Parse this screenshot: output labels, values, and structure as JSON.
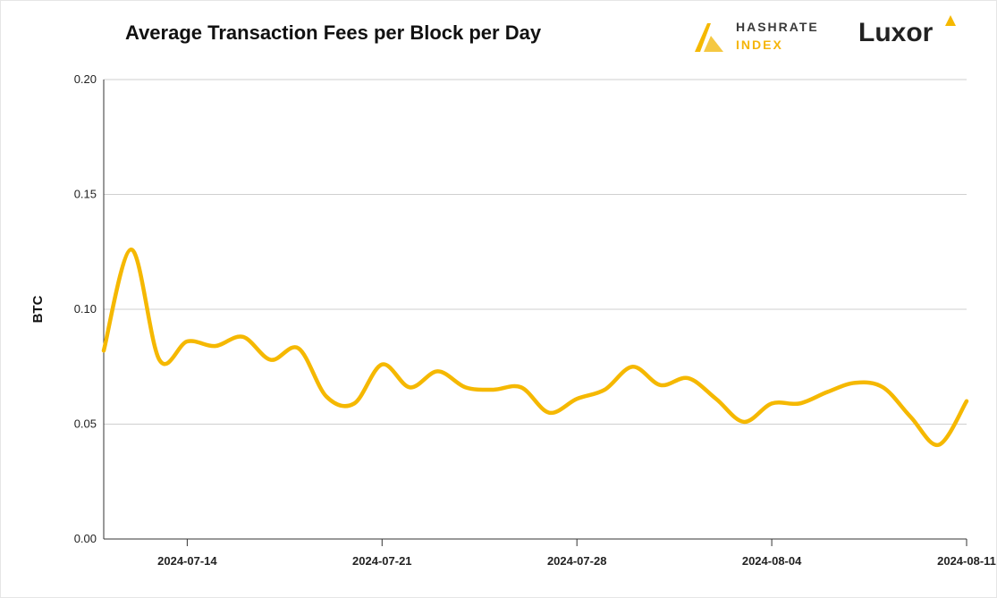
{
  "chart_data": {
    "type": "line",
    "title": "Average Transaction Fees per Block per Day",
    "xlabel": "",
    "ylabel": "BTC",
    "ylim": [
      0,
      0.2
    ],
    "yticks": [
      "0.00",
      "0.05",
      "0.10",
      "0.15",
      "0.20"
    ],
    "xlim": [
      "2024-07-11",
      "2024-08-11"
    ],
    "xticks": [
      "2024-07-14",
      "2024-07-21",
      "2024-07-28",
      "2024-08-04",
      "2024-08-11"
    ],
    "grid": true,
    "series": [
      {
        "color": "#f5b800",
        "x": [
          "2024-07-11",
          "2024-07-12",
          "2024-07-13",
          "2024-07-14",
          "2024-07-15",
          "2024-07-16",
          "2024-07-17",
          "2024-07-18",
          "2024-07-19",
          "2024-07-20",
          "2024-07-21",
          "2024-07-22",
          "2024-07-23",
          "2024-07-24",
          "2024-07-25",
          "2024-07-26",
          "2024-07-27",
          "2024-07-28",
          "2024-07-29",
          "2024-07-30",
          "2024-07-31",
          "2024-08-01",
          "2024-08-02",
          "2024-08-03",
          "2024-08-04",
          "2024-08-05",
          "2024-08-06",
          "2024-08-07",
          "2024-08-08",
          "2024-08-09",
          "2024-08-10",
          "2024-08-11"
        ],
        "values": [
          0.082,
          0.126,
          0.078,
          0.086,
          0.084,
          0.088,
          0.078,
          0.083,
          0.062,
          0.059,
          0.076,
          0.066,
          0.073,
          0.066,
          0.065,
          0.066,
          0.055,
          0.061,
          0.065,
          0.075,
          0.067,
          0.07,
          0.061,
          0.051,
          0.059,
          0.059,
          0.064,
          0.068,
          0.066,
          0.053,
          0.041,
          0.06
        ]
      }
    ]
  },
  "brand": {
    "hashrate_top": "HASHRATE",
    "hashrate_bottom": "INDEX",
    "luxor": "Luxor",
    "accent": "#f5b800"
  }
}
